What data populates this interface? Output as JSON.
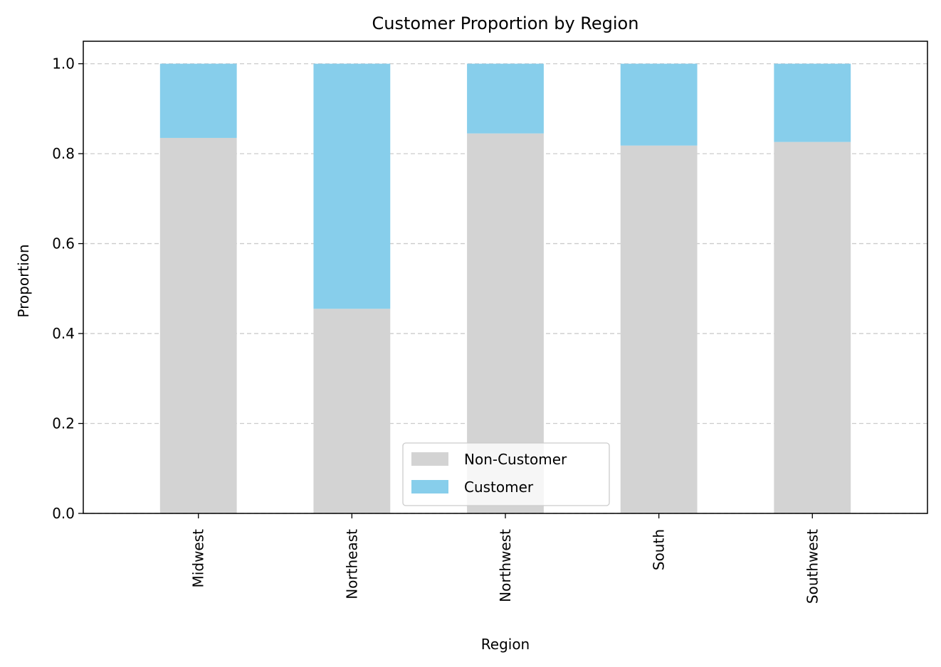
{
  "chart_data": {
    "type": "bar",
    "stacked": true,
    "title": "Customer Proportion by Region",
    "xlabel": "Region",
    "ylabel": "Proportion",
    "categories": [
      "Midwest",
      "Northeast",
      "Northwest",
      "South",
      "Southwest"
    ],
    "series": [
      {
        "name": "Non-Customer",
        "color": "#d3d3d3",
        "values": [
          0.835,
          0.455,
          0.845,
          0.818,
          0.826
        ]
      },
      {
        "name": "Customer",
        "color": "#87ceeb",
        "values": [
          0.165,
          0.545,
          0.155,
          0.182,
          0.174
        ]
      }
    ],
    "ylim": [
      0,
      1.05
    ],
    "yticks": [
      0.0,
      0.2,
      0.4,
      0.6,
      0.8,
      1.0
    ],
    "ytick_labels": [
      "0.0",
      "0.2",
      "0.4",
      "0.6",
      "0.8",
      "1.0"
    ],
    "grid": {
      "axis": "y",
      "style": "dashed",
      "color": "#cccccc"
    },
    "legend": {
      "position": "lower-center"
    }
  }
}
